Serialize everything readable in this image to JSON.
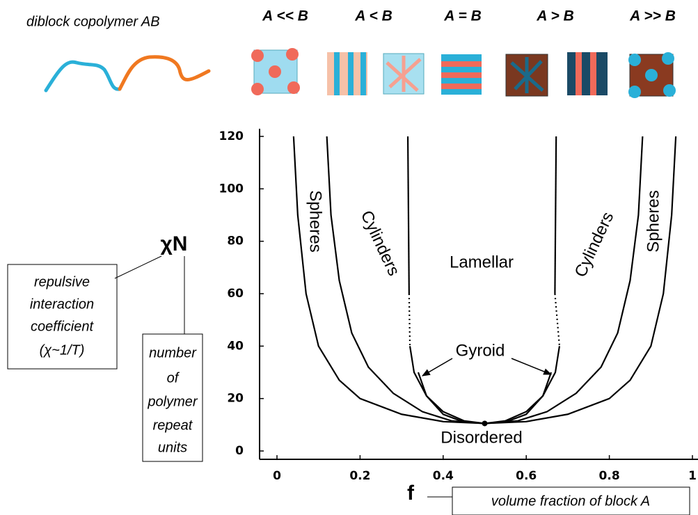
{
  "chart_data": {
    "type": "line",
    "xlabel": "f",
    "ylabel": "χN",
    "xlim": [
      0,
      1
    ],
    "ylim": [
      0,
      120
    ],
    "xticks": [
      0,
      0.2,
      0.4,
      0.6,
      0.8,
      1
    ],
    "yticks": [
      0,
      20,
      40,
      60,
      80,
      100,
      120
    ],
    "grid": false,
    "series": [
      {
        "color": "#000000",
        "dash": false,
        "x": [
          0.04,
          0.05,
          0.07,
          0.1,
          0.15,
          0.2,
          0.3,
          0.4,
          0.5,
          0.6,
          0.7,
          0.8,
          0.85,
          0.9,
          0.93,
          0.95,
          0.96
        ],
        "values": [
          120,
          90,
          60,
          40,
          27,
          20,
          14,
          11.2,
          10.5,
          11.2,
          14,
          20,
          27,
          40,
          60,
          90,
          120
        ]
      },
      {
        "color": "#000000",
        "dash": false,
        "x": [
          0.12,
          0.13,
          0.15,
          0.18,
          0.22,
          0.28,
          0.35,
          0.42,
          0.5,
          0.58,
          0.65,
          0.72,
          0.78,
          0.82,
          0.85,
          0.87,
          0.88
        ],
        "values": [
          120,
          90,
          65,
          45,
          32,
          22,
          15,
          11.5,
          10.5,
          11.5,
          15,
          22,
          32,
          45,
          65,
          90,
          120
        ]
      },
      {
        "color": "#000000",
        "dash": false,
        "x": [
          0.32,
          0.33,
          0.36,
          0.4,
          0.45,
          0.5,
          0.55,
          0.6,
          0.64,
          0.67,
          0.68
        ],
        "values": [
          40,
          30,
          21,
          15,
          11.5,
          10.5,
          11.5,
          15,
          21,
          30,
          40
        ]
      },
      {
        "color": "#000000",
        "dash": false,
        "x": [
          0.34,
          0.36,
          0.4,
          0.45,
          0.5,
          0.55,
          0.6,
          0.64,
          0.66
        ],
        "values": [
          30,
          21,
          14,
          11,
          10.5,
          11,
          14,
          21,
          30
        ]
      },
      {
        "color": "#000000",
        "dash": false,
        "x": [
          0.315,
          0.318
        ],
        "values": [
          120,
          60
        ]
      },
      {
        "color": "#000000",
        "dash": false,
        "x": [
          0.672,
          0.669
        ],
        "values": [
          120,
          60
        ]
      },
      {
        "color": "#000000",
        "dash": true,
        "x": [
          0.318,
          0.32
        ],
        "values": [
          60,
          40
        ]
      },
      {
        "color": "#000000",
        "dash": true,
        "x": [
          0.669,
          0.68
        ],
        "values": [
          60,
          40
        ]
      }
    ],
    "critical_point": {
      "x": 0.5,
      "y": 10.5
    },
    "annotations": [
      "Spheres",
      "Cylinders",
      "Lamellar",
      "Gyroid",
      "Disordered",
      "Cylinders",
      "Spheres"
    ]
  },
  "header": {
    "copolymer": "diblock copolymer AB",
    "ratios": [
      "A << B",
      "A < B",
      "A = B",
      "A > B",
      "A >> B"
    ]
  },
  "notes": {
    "chi": [
      "repulsive",
      "interaction",
      "coefficient",
      "(χ~1/T)"
    ],
    "n": [
      "number",
      "of",
      "polymer",
      "repeat",
      "units"
    ],
    "f": "volume fraction of block A"
  }
}
